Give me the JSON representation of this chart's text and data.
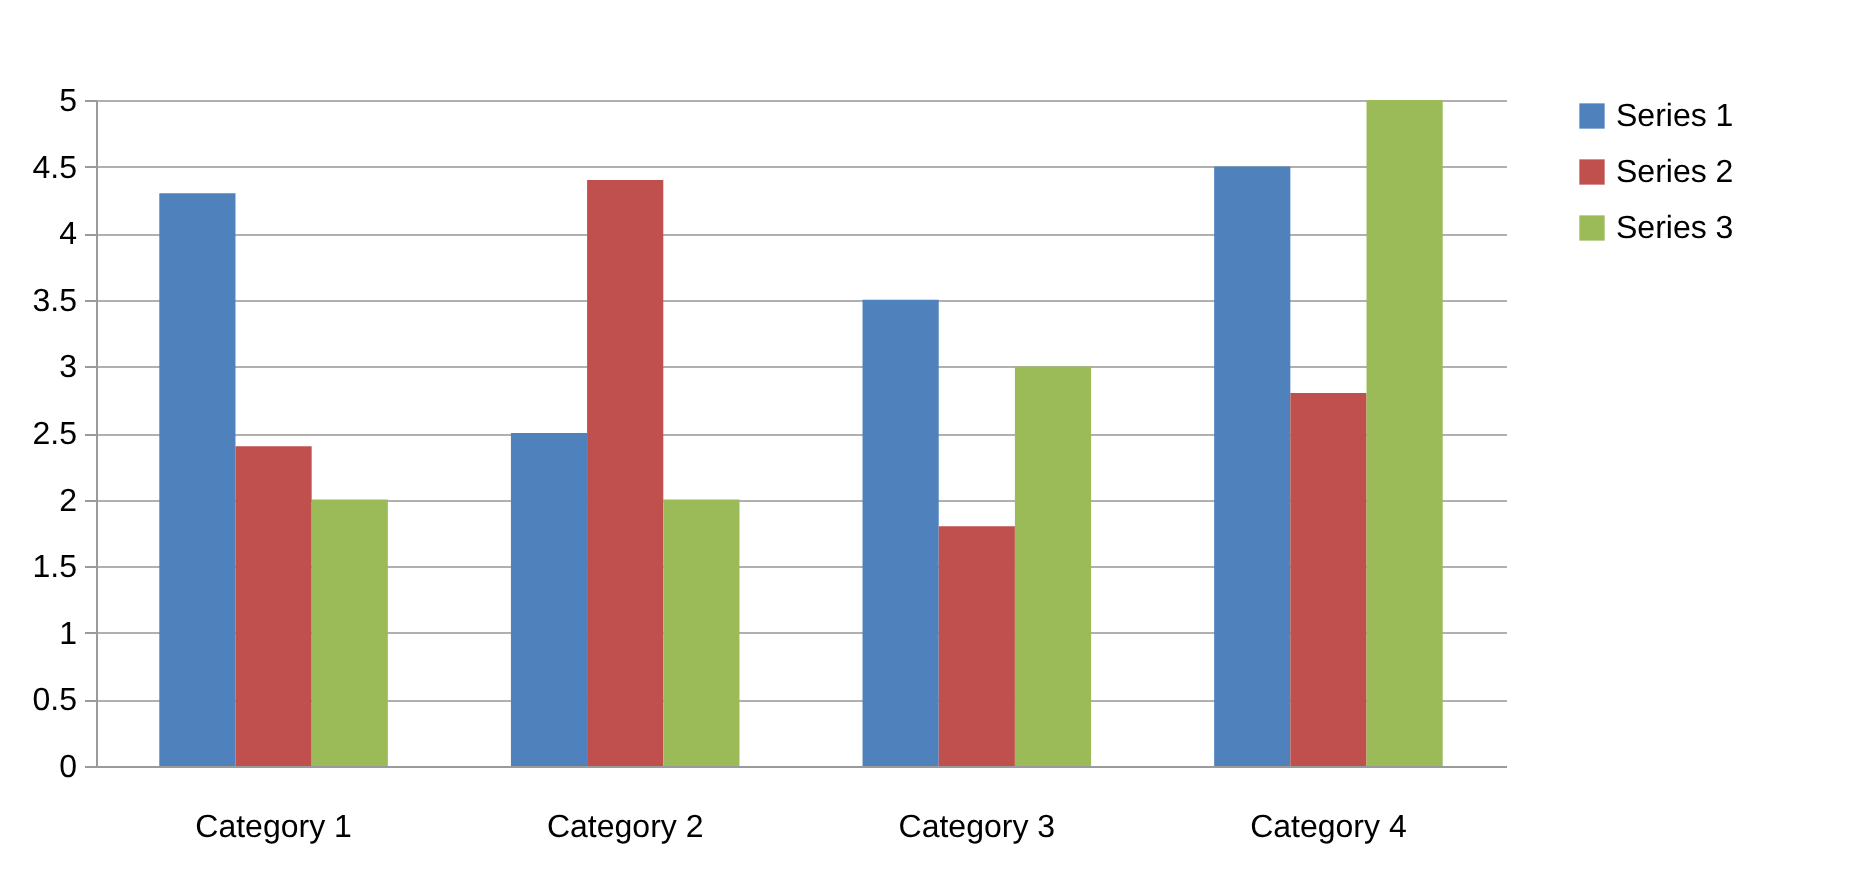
{
  "chart_data": {
    "type": "bar",
    "categories": [
      "Category 1",
      "Category 2",
      "Category 3",
      "Category 4"
    ],
    "series": [
      {
        "name": "Series 1",
        "color": "#4f81bd",
        "values": [
          4.3,
          2.5,
          3.5,
          4.5
        ]
      },
      {
        "name": "Series 2",
        "color": "#c0504d",
        "values": [
          2.4,
          4.4,
          1.8,
          2.8
        ]
      },
      {
        "name": "Series 3",
        "color": "#9bbb59",
        "values": [
          2,
          2,
          3,
          5
        ]
      }
    ],
    "ylim": [
      0,
      5
    ],
    "yticks": [
      0,
      0.5,
      1,
      1.5,
      2,
      2.5,
      3,
      3.5,
      4,
      4.5,
      5
    ],
    "grid": "y",
    "legend": "right"
  }
}
